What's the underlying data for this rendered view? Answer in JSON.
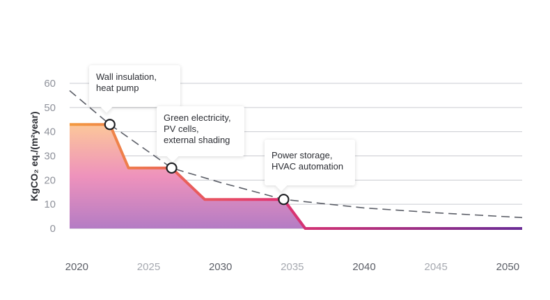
{
  "chart_data": {
    "type": "area",
    "title": "",
    "xlabel": "",
    "ylabel": "KgCO₂ eq./(m²year)",
    "xlim": [
      2019.5,
      2051
    ],
    "ylim": [
      0,
      60
    ],
    "x_ticks": [
      {
        "label": "2020",
        "value": 2020,
        "emphasis": true
      },
      {
        "label": "2025",
        "value": 2025,
        "emphasis": false
      },
      {
        "label": "2030",
        "value": 2030,
        "emphasis": true
      },
      {
        "label": "2035",
        "value": 2035,
        "emphasis": false
      },
      {
        "label": "2040",
        "value": 2040,
        "emphasis": true
      },
      {
        "label": "2045",
        "value": 2045,
        "emphasis": false
      },
      {
        "label": "2050",
        "value": 2050,
        "emphasis": true
      }
    ],
    "y_ticks": [
      0,
      10,
      20,
      30,
      40,
      50,
      60
    ],
    "grid": true,
    "series": [
      {
        "values": [
          {
            "x": 2019.5,
            "y": 43
          },
          {
            "x": 2022.3,
            "y": 43
          },
          {
            "x": 2023.6,
            "y": 25
          },
          {
            "x": 2026.6,
            "y": 25
          },
          {
            "x": 2028.9,
            "y": 12
          },
          {
            "x": 2034.4,
            "y": 12
          },
          {
            "x": 2035.9,
            "y": 0
          },
          {
            "x": 2051,
            "y": 0
          }
        ]
      },
      {
        "style": "dashed",
        "values": [
          {
            "x": 2019.5,
            "y": 57
          },
          {
            "x": 2022.3,
            "y": 43
          },
          {
            "x": 2026.6,
            "y": 25
          },
          {
            "x": 2030,
            "y": 19
          },
          {
            "x": 2034.4,
            "y": 12
          },
          {
            "x": 2040,
            "y": 8.5
          },
          {
            "x": 2045,
            "y": 6.5
          },
          {
            "x": 2051,
            "y": 4.5
          }
        ]
      }
    ],
    "annotations": [
      {
        "x": 2022.3,
        "y": 43,
        "text": "Wall insulation,\nheat pump"
      },
      {
        "x": 2026.6,
        "y": 25,
        "text": "Green electricity,\nPV cells,\nexternal shading"
      },
      {
        "x": 2034.4,
        "y": 12,
        "text": "Power storage,\nHVAC automation"
      }
    ],
    "colors": {
      "grid": "#c9cbd0",
      "tick_primary": "#5b5e66",
      "tick_muted": "#a6a9b0",
      "dashed": "#5a5d66",
      "gradient_start": "#f39a3f",
      "gradient_mid": "#e2346f",
      "gradient_end": "#6a2c96",
      "fill_top": "#fcc79a",
      "fill_mid": "#ee92bc",
      "fill_bottom": "#b47cc4"
    }
  }
}
